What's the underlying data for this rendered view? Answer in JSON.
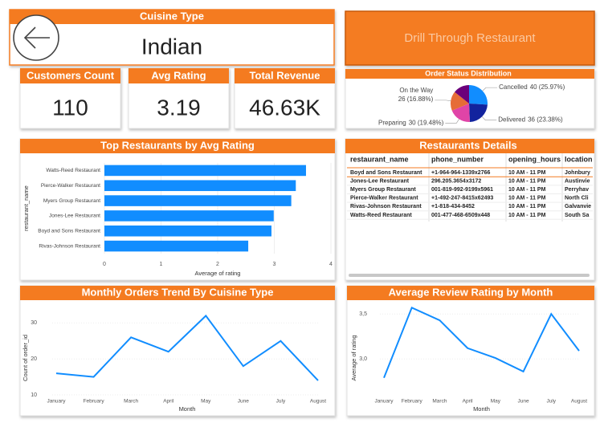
{
  "header": {
    "title": "Cuisine Type",
    "value": "Indian"
  },
  "button": {
    "label": "Drill Through Restaurant"
  },
  "cards": [
    {
      "label": "Customers Count",
      "value": "110"
    },
    {
      "label": "Avg Rating",
      "value": "3.19"
    },
    {
      "label": "Total Revenue",
      "value": "46.63K"
    }
  ],
  "table": {
    "title": "Restaurants Details",
    "columns": [
      "restaurant_name",
      "phone_number",
      "opening_hours",
      "location"
    ],
    "rows": [
      [
        "Boyd and Sons Restaurant",
        "+1-964-964-1339x2766",
        "10 AM - 11 PM",
        "Johnbury"
      ],
      [
        "Jones-Lee Restaurant",
        "296.205.3654x3172",
        "10 AM - 11 PM",
        "Austinvie"
      ],
      [
        "Myers Group Restaurant",
        "001-819-992-9199x5961",
        "10 AM - 11 PM",
        "Perryhav"
      ],
      [
        "Pierce-Walker Restaurant",
        "+1-492-247-8415x62493",
        "10 AM - 11 PM",
        "North Cli"
      ],
      [
        "Rivas-Johnson Restaurant",
        "+1-818-434-8452",
        "10 AM - 11 PM",
        "Galvanvie"
      ],
      [
        "Watts-Reed Restaurant",
        "001-477-468-6509x448",
        "10 AM - 11 PM",
        "South Sa"
      ]
    ]
  },
  "chart_data": [
    {
      "type": "pie",
      "title": "Order Status Distribution",
      "categories": [
        "Cancelled",
        "Delivered",
        "Preparing",
        "On the Way",
        null
      ],
      "values": [
        40,
        36,
        30,
        26,
        22
      ],
      "value_labels": [
        "40 (25.97%)",
        "36 (23.38%)",
        "30 (19.48%)",
        "26 (16.88%)",
        null
      ],
      "colors": [
        "#118dff",
        "#12239e",
        "#e044a7",
        "#e66c37",
        "#6b007b"
      ]
    },
    {
      "type": "bar",
      "title": "Top Restaurants by Avg Rating",
      "x_label": "Average of rating",
      "y_label": "restaurant_name",
      "categories": [
        "Watts-Reed Restaurant",
        "Pierce-Walker Restaurant",
        "Myers Group Restaurant",
        "Jones-Lee Restaurant",
        "Boyd and Sons Restaurant",
        "Rivas-Johnson Restaurant"
      ],
      "values": [
        3.56,
        3.38,
        3.3,
        2.99,
        2.95,
        2.54
      ],
      "color": "#118dff",
      "xlim": [
        0,
        4
      ],
      "xticks": [
        0,
        1,
        2,
        3,
        4
      ]
    },
    {
      "type": "line",
      "title": "Monthly Orders Trend By Cuisine Type",
      "x_label": "Month",
      "y_label": "Count of order_id",
      "categories": [
        "January",
        "February",
        "March",
        "April",
        "May",
        "June",
        "July",
        "August"
      ],
      "values": [
        16,
        15,
        26,
        22,
        32,
        18,
        25,
        14
      ],
      "color": "#118dff",
      "ylim": [
        10,
        35
      ],
      "yticks": [
        10,
        20,
        30
      ]
    },
    {
      "type": "line",
      "title": "Average Review Rating by Month",
      "x_label": "Month",
      "y_label": "Average of rating",
      "categories": [
        "January",
        "February",
        "March",
        "April",
        "May",
        "June",
        "July",
        "August"
      ],
      "values": [
        2.79,
        3.57,
        3.43,
        3.12,
        3.01,
        2.86,
        3.5,
        3.09
      ],
      "color": "#118dff",
      "ylim": [
        2.6,
        3.6
      ],
      "yticks": [
        {
          "value": 3.0,
          "label": "3,0"
        },
        {
          "value": 3.5,
          "label": "3,5"
        }
      ]
    }
  ]
}
